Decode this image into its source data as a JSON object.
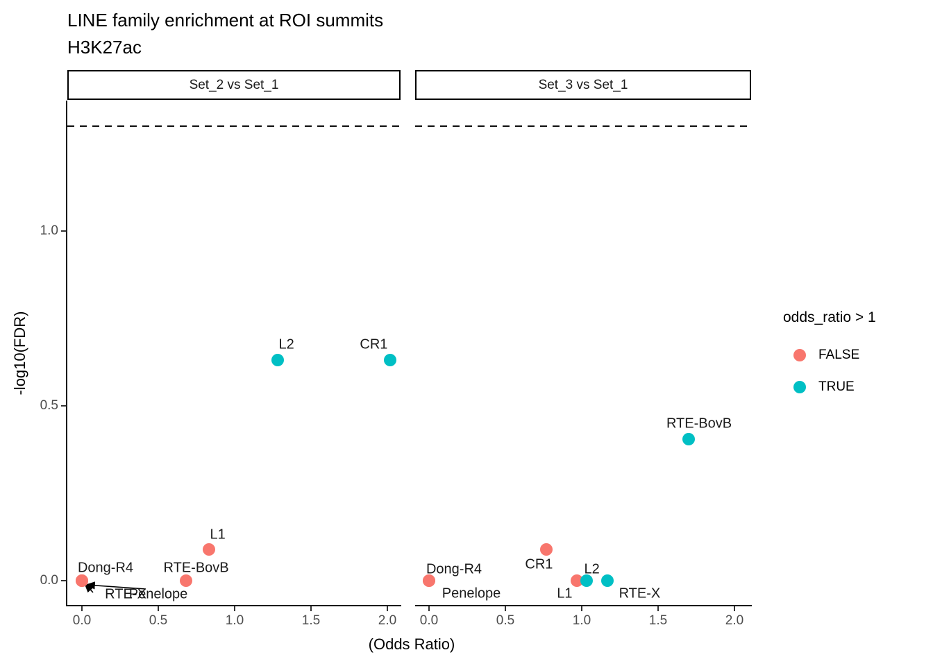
{
  "title": "LINE family enrichment at ROI summits",
  "subtitle": "H3K27ac",
  "axes": {
    "x": {
      "title": "(Odds Ratio)",
      "tick_labels": [
        "0.0",
        "0.5",
        "1.0",
        "1.5",
        "2.0"
      ]
    },
    "y": {
      "title": "-log10(FDR)",
      "tick_labels": [
        "0.0",
        "0.5",
        "1.0"
      ]
    }
  },
  "legend": {
    "title": "odds_ratio > 1",
    "items": [
      {
        "label": "FALSE",
        "color": "#F8766D"
      },
      {
        "label": "TRUE",
        "color": "#00BFC4"
      }
    ]
  },
  "colors": {
    "false_point": "#F8766D",
    "true_point": "#00BFC4",
    "axis_text": "#4D4D4D",
    "line": "#000000"
  },
  "chart_data": {
    "type": "scatter",
    "title": "LINE family enrichment at ROI summits",
    "subtitle": "H3K27ac",
    "xlabel": "(Odds Ratio)",
    "ylabel": "-log10(FDR)",
    "xlim": [
      -0.1,
      2.1
    ],
    "ylim": [
      -0.07,
      1.36
    ],
    "x_ticks": [
      0,
      0.5,
      1,
      1.5,
      2
    ],
    "y_ticks": [
      0,
      0.5,
      1
    ],
    "grid": false,
    "legend_position": "right",
    "threshold_dashed_hline_y": 1.3,
    "facets": [
      {
        "label": "Set_2 vs Set_1",
        "points": [
          {
            "name": "RTE-X",
            "x": 0.0,
            "y": 0.0,
            "odds_gt_1": false,
            "label_offset": [
              63,
              20
            ],
            "leader": {
              "from": [
                16,
                17
              ],
              "to": [
                4,
                4
              ]
            }
          },
          {
            "name": "Penelope",
            "x": 0.0,
            "y": 0.0,
            "odds_gt_1": false,
            "label_offset": [
              110,
              20
            ],
            "leader": {
              "from": [
                92,
                12
              ],
              "to": [
                6,
                6
              ]
            }
          },
          {
            "name": "Dong-R4",
            "x": 0.0,
            "y": 0.0,
            "odds_gt_1": false,
            "label_offset": [
              34,
              -18
            ]
          },
          {
            "name": "RTE-BovB",
            "x": 0.68,
            "y": 0.0,
            "odds_gt_1": false,
            "label_offset": [
              15,
              -18
            ]
          },
          {
            "name": "L1",
            "x": 0.83,
            "y": 0.09,
            "odds_gt_1": false,
            "label_offset": [
              13,
              -21
            ]
          },
          {
            "name": "L2",
            "x": 1.28,
            "y": 0.63,
            "odds_gt_1": true,
            "label_offset": [
              13,
              -22
            ]
          },
          {
            "name": "CR1",
            "x": 2.02,
            "y": 0.63,
            "odds_gt_1": true,
            "label_offset": [
              -24,
              -22
            ]
          }
        ]
      },
      {
        "label": "Set_3 vs Set_1",
        "points": [
          {
            "name": "Penelope",
            "x": 0.0,
            "y": 0.0,
            "odds_gt_1": false,
            "label_offset": [
              61,
              19
            ]
          },
          {
            "name": "Dong-R4",
            "x": 0.0,
            "y": 0.0,
            "odds_gt_1": false,
            "label_offset": [
              36,
              -16
            ]
          },
          {
            "name": "CR1",
            "x": 0.77,
            "y": 0.09,
            "odds_gt_1": false,
            "label_offset": [
              -11,
              22
            ]
          },
          {
            "name": "L1",
            "x": 0.97,
            "y": 0.0,
            "odds_gt_1": false,
            "label_offset": [
              -18,
              19
            ]
          },
          {
            "name": "L2",
            "x": 1.03,
            "y": 0.0,
            "odds_gt_1": true,
            "label_offset": [
              8,
              -16
            ]
          },
          {
            "name": "RTE-X",
            "x": 1.17,
            "y": 0.0,
            "odds_gt_1": true,
            "label_offset": [
              46,
              19
            ]
          },
          {
            "name": "RTE-BovB",
            "x": 1.7,
            "y": 0.405,
            "odds_gt_1": true,
            "label_offset": [
              15,
              -22
            ]
          }
        ]
      }
    ]
  }
}
